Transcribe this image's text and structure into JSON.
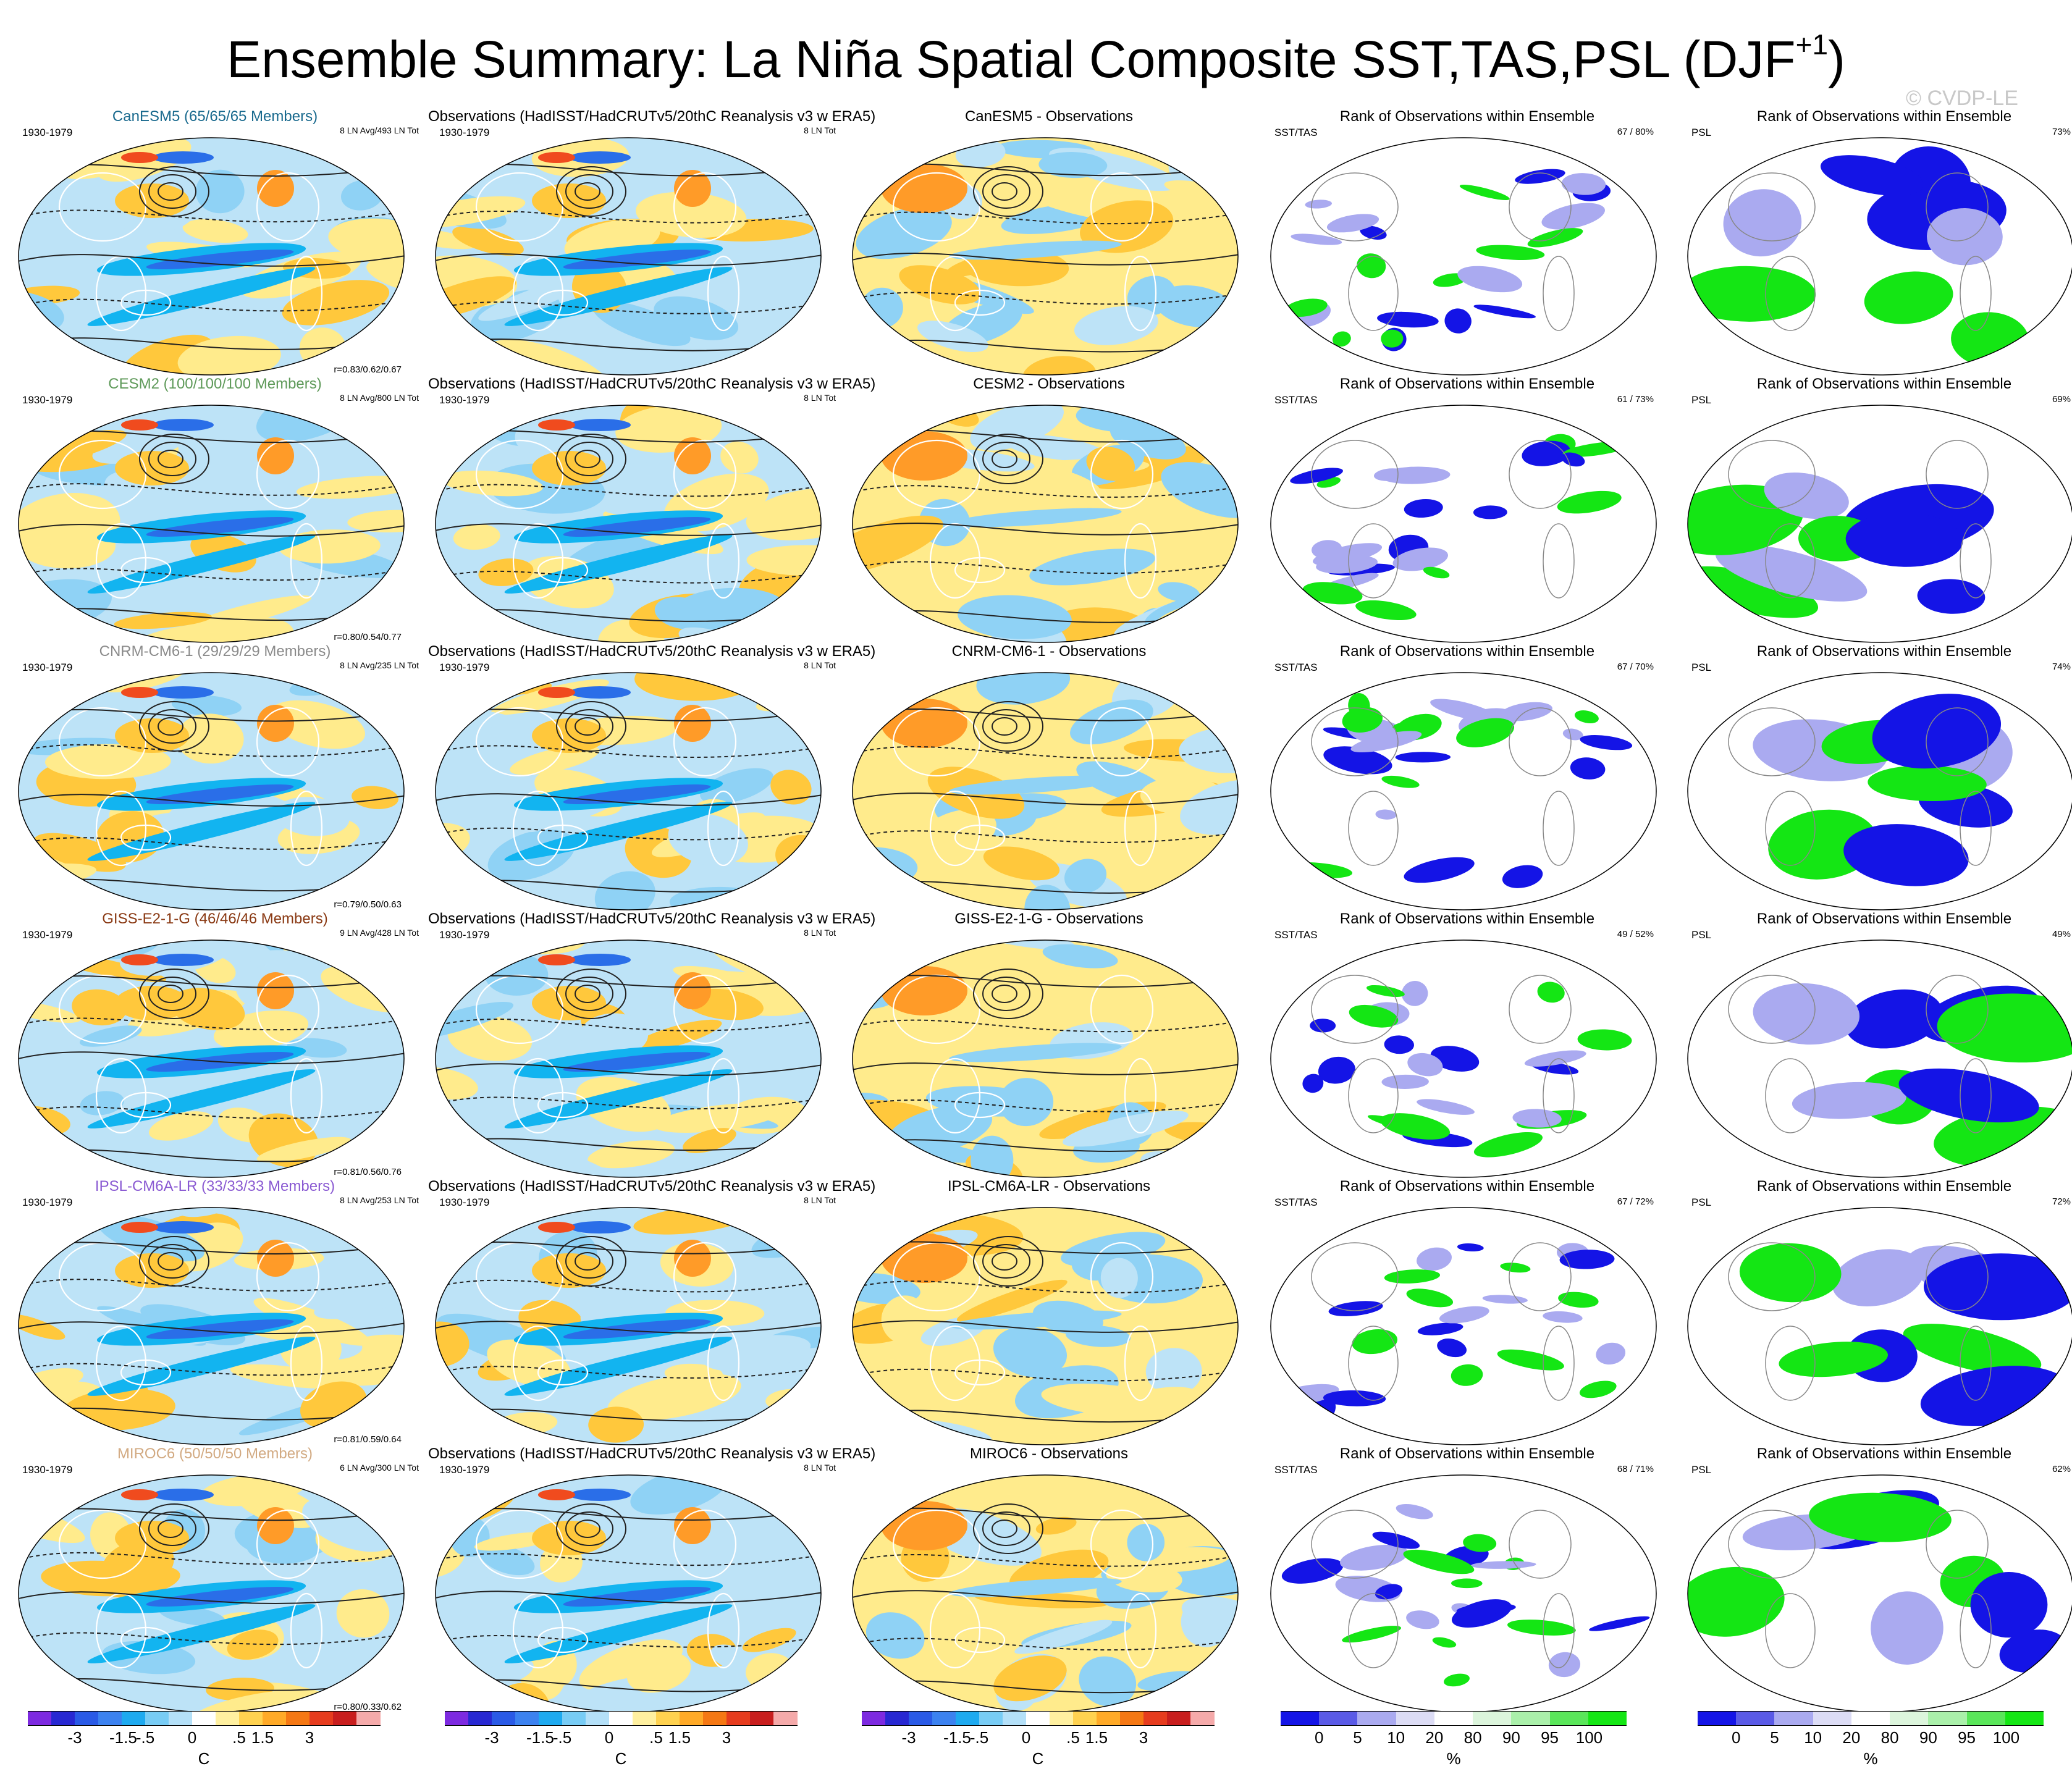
{
  "title": "Ensemble Summary: La Niña Spatial Composite SST,TAS,PSL (DJF",
  "title_sup": "+1",
  "watermark": "© CVDP-LE",
  "rank_title": "Rank of Observations within Ensemble",
  "obs_title": "Observations (HadISST/HadCRUTv5/20thC Reanalysis v3 w ERA5)",
  "period": "1930-1979",
  "obs_count": "8 LN Tot",
  "rank_label_sst": "SST/TAS",
  "rank_label_psl": "PSL",
  "colors": {
    "blue5": "#1f35c8",
    "blue4": "#2a6ee8",
    "blue3": "#3a96f0",
    "blue2": "#12b4f0",
    "blue1": "#8fd2f5",
    "blue0": "#bde3f7",
    "yellow": "#ffeb8c",
    "orange1": "#ffc83c",
    "orange2": "#ff9b28",
    "red1": "#f04b1e",
    "rank_blue": "#1414e6",
    "rank_green": "#14e614"
  },
  "rows": [
    {
      "model": "CanESM5",
      "members": "CanESM5 (65/65/65 Members)",
      "model_color": "#1a6a8e",
      "avg": "8 LN Avg/493 LN Tot",
      "corr": "r=0.83/0.62/0.67",
      "diff_title": "CanESM5 - Observations",
      "sst_pct": "67 /  80%",
      "psl_pct": "73%"
    },
    {
      "model": "CESM2",
      "members": "CESM2 (100/100/100 Members)",
      "model_color": "#5f9a5a",
      "avg": "8 LN Avg/800 LN Tot",
      "corr": "r=0.80/0.54/0.77",
      "diff_title": "CESM2 - Observations",
      "sst_pct": "61 /  73%",
      "psl_pct": "69%"
    },
    {
      "model": "CNRM-CM6-1",
      "members": "CNRM-CM6-1 (29/29/29 Members)",
      "model_color": "#8a8a8a",
      "avg": "8 LN Avg/235 LN Tot",
      "corr": "r=0.79/0.50/0.63",
      "diff_title": "CNRM-CM6-1 - Observations",
      "sst_pct": "67 /  70%",
      "psl_pct": "74%"
    },
    {
      "model": "GISS-E2-1-G",
      "members": "GISS-E2-1-G (46/46/46 Members)",
      "model_color": "#8a3a14",
      "avg": "9 LN Avg/428 LN Tot",
      "corr": "r=0.81/0.56/0.76",
      "diff_title": "GISS-E2-1-G - Observations",
      "sst_pct": "49 /  52%",
      "psl_pct": "49%"
    },
    {
      "model": "IPSL-CM6A-LR",
      "members": "IPSL-CM6A-LR (33/33/33 Members)",
      "model_color": "#8a5ad2",
      "avg": "8 LN Avg/253 LN Tot",
      "corr": "r=0.81/0.59/0.64",
      "diff_title": "IPSL-CM6A-LR - Observations",
      "sst_pct": "67 /  72%",
      "psl_pct": "72%"
    },
    {
      "model": "MIROC6",
      "members": "MIROC6 (50/50/50 Members)",
      "model_color": "#d2aa82",
      "avg": "6 LN Avg/300 LN Tot",
      "corr": "r=0.80/0.33/0.62",
      "diff_title": "MIROC6 - Observations",
      "sst_pct": "68 /  71%",
      "psl_pct": "62%"
    }
  ],
  "chart_data": {
    "type": "heatmap",
    "columns": [
      "Ensemble",
      "Observations",
      "Ensemble - Observations",
      "Rank SST/TAS",
      "Rank PSL"
    ],
    "temp_colorbar": {
      "unit": "C",
      "ticks": [
        "-3",
        "-1.5",
        "-.5",
        "0",
        ".5",
        "1.5",
        "3"
      ],
      "colors": [
        "#7d2ae0",
        "#2828d2",
        "#2a5ae6",
        "#3c82f0",
        "#1eaaf0",
        "#78ccf5",
        "#b4e0f8",
        "#ffffff",
        "#fff0a0",
        "#ffd250",
        "#ffaa28",
        "#f57814",
        "#e63c1e",
        "#c81e1e",
        "#f5aaaa"
      ]
    },
    "rank_colorbar": {
      "unit": "%",
      "ticks": [
        "0",
        "5",
        "10",
        "20",
        "80",
        "90",
        "95",
        "100"
      ],
      "colors": [
        "#1414e6",
        "#5a5ae6",
        "#aaaaf0",
        "#dcdcf5",
        "#ffffff",
        "#dcf5dc",
        "#aaf0aa",
        "#5ae65a",
        "#14e614"
      ]
    }
  }
}
